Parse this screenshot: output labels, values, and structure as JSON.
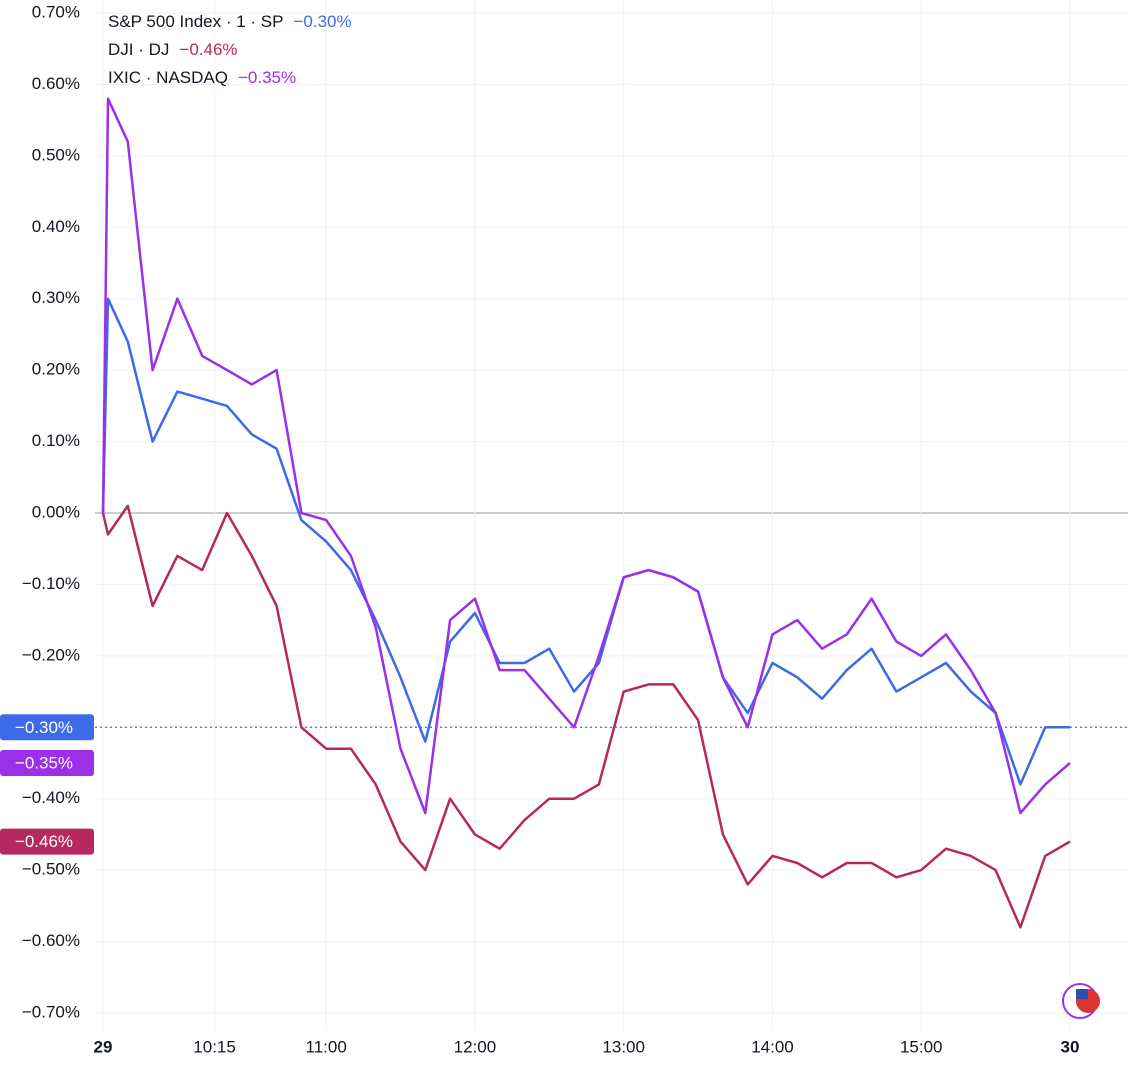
{
  "chart_data": {
    "type": "line",
    "x": [
      "09:30",
      "09:32",
      "09:40",
      "09:50",
      "10:00",
      "10:10",
      "10:20",
      "10:30",
      "10:40",
      "10:50",
      "11:00",
      "11:10",
      "11:20",
      "11:30",
      "11:40",
      "11:50",
      "12:00",
      "12:10",
      "12:20",
      "12:30",
      "12:40",
      "12:50",
      "13:00",
      "13:10",
      "13:20",
      "13:30",
      "13:40",
      "13:50",
      "14:00",
      "14:10",
      "14:20",
      "14:30",
      "14:40",
      "14:50",
      "15:00",
      "15:10",
      "15:20",
      "15:30",
      "15:40",
      "15:50",
      "16:00"
    ],
    "xlim": [
      "09:30",
      "16:00"
    ],
    "xticks": [
      {
        "value": "09:30",
        "label": "29"
      },
      "10:15",
      "11:00",
      "12:00",
      "13:00",
      "14:00",
      "15:00",
      {
        "value": "16:00",
        "label": "30"
      }
    ],
    "ylim": [
      -0.7,
      0.7
    ],
    "yticks": [
      {
        "value": 0.7,
        "label": "0.70%"
      },
      {
        "value": 0.6,
        "label": "0.60%"
      },
      {
        "value": 0.5,
        "label": "0.50%"
      },
      {
        "value": 0.4,
        "label": "0.40%"
      },
      {
        "value": 0.3,
        "label": "0.30%"
      },
      {
        "value": 0.2,
        "label": "0.20%"
      },
      {
        "value": 0.1,
        "label": "0.10%"
      },
      {
        "value": 0,
        "label": "0.00%"
      },
      {
        "value": -0.1,
        "label": "−0.10%"
      },
      {
        "value": -0.2,
        "label": "−0.20%"
      },
      {
        "value": -0.3,
        "label": "−0.30%"
      },
      {
        "value": -0.4,
        "label": "−0.40%"
      },
      {
        "value": -0.5,
        "label": "−0.50%"
      },
      {
        "value": -0.6,
        "label": "−0.60%"
      },
      {
        "value": -0.7,
        "label": "−0.70%"
      }
    ],
    "grid": true,
    "legend": "top-left",
    "series": [
      {
        "name": "S&P 500 Index · 1 · SP",
        "legend_value": "−0.30%",
        "color": "#3d6be8",
        "values": [
          0,
          0.3,
          0.24,
          0.1,
          0.17,
          0.16,
          0.15,
          0.11,
          0.09,
          -0.01,
          -0.04,
          -0.08,
          -0.15,
          -0.23,
          -0.32,
          -0.18,
          -0.14,
          -0.21,
          -0.21,
          -0.19,
          -0.25,
          -0.21,
          -0.09,
          -0.08,
          -0.09,
          -0.11,
          -0.23,
          -0.28,
          -0.21,
          -0.23,
          -0.26,
          -0.22,
          -0.19,
          -0.25,
          -0.23,
          -0.21,
          -0.25,
          -0.28,
          -0.38,
          -0.3,
          -0.3
        ]
      },
      {
        "name": "DJI · DJ",
        "legend_value": "−0.46%",
        "color": "#b5295e",
        "values": [
          0,
          -0.03,
          0.01,
          -0.13,
          -0.06,
          -0.08,
          0.0,
          -0.06,
          -0.13,
          -0.3,
          -0.33,
          -0.33,
          -0.38,
          -0.46,
          -0.5,
          -0.4,
          -0.45,
          -0.47,
          -0.43,
          -0.4,
          -0.4,
          -0.38,
          -0.25,
          -0.24,
          -0.24,
          -0.29,
          -0.45,
          -0.52,
          -0.48,
          -0.49,
          -0.51,
          -0.49,
          -0.49,
          -0.51,
          -0.5,
          -0.47,
          -0.48,
          -0.5,
          -0.58,
          -0.48,
          -0.46
        ]
      },
      {
        "name": "IXIC · NASDAQ",
        "legend_value": "−0.35%",
        "color": "#9b30e8",
        "values": [
          0,
          0.58,
          0.52,
          0.2,
          0.3,
          0.22,
          0.2,
          0.18,
          0.2,
          0.0,
          -0.01,
          -0.06,
          -0.16,
          -0.33,
          -0.42,
          -0.15,
          -0.12,
          -0.22,
          -0.22,
          -0.26,
          -0.3,
          -0.2,
          -0.09,
          -0.08,
          -0.09,
          -0.11,
          -0.23,
          -0.3,
          -0.17,
          -0.15,
          -0.19,
          -0.17,
          -0.12,
          -0.18,
          -0.2,
          -0.17,
          -0.22,
          -0.28,
          -0.42,
          -0.38,
          -0.35
        ]
      }
    ]
  }
}
